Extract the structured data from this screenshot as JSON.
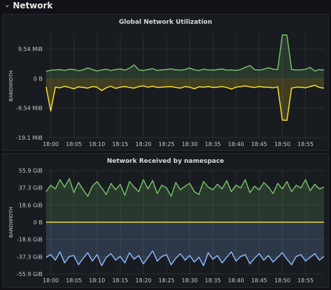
{
  "row": {
    "title": "Network"
  },
  "panels": [
    {
      "title": "Global Network Utilization",
      "ylabel": "BANDWIDTH",
      "yticks": [
        "9.54 MiB",
        "0 B",
        "-9.54 MiB",
        "-19.1 MiB"
      ],
      "xticks": [
        "18:00",
        "18:05",
        "18:10",
        "18:15",
        "18:20",
        "18:25",
        "18:30",
        "18:35",
        "18:40",
        "18:45",
        "18:50",
        "18:55"
      ],
      "colors": {
        "received": "#73bf69",
        "transmitted": "#fade2a"
      }
    },
    {
      "title": "Network Received by namespace",
      "ylabel": "BANDWIDTH",
      "yticks": [
        "55.9 GiB",
        "37.3 GiB",
        "18.6 GiB",
        "0 B",
        "-18.6 GiB",
        "-37.3 GiB",
        "-55.9 GiB"
      ],
      "xticks": [
        "18:00",
        "18:05",
        "18:10",
        "18:15",
        "18:20",
        "18:25",
        "18:30",
        "18:35",
        "18:40",
        "18:45",
        "18:50",
        "18:55"
      ],
      "colors": {
        "received": "#73bf69",
        "zero": "#fade2a",
        "transmitted": "#8ab8ff"
      }
    }
  ],
  "chart_data": [
    {
      "type": "line",
      "title": "Global Network Utilization",
      "ylabel": "BANDWIDTH",
      "ylim": [
        -19.1,
        14.3
      ],
      "x": [
        "17:59",
        "18:00",
        "18:01",
        "18:02",
        "18:03",
        "18:04",
        "18:05",
        "18:06",
        "18:07",
        "18:08",
        "18:09",
        "18:10",
        "18:11",
        "18:12",
        "18:13",
        "18:14",
        "18:15",
        "18:16",
        "18:17",
        "18:18",
        "18:19",
        "18:20",
        "18:21",
        "18:22",
        "18:23",
        "18:24",
        "18:25",
        "18:26",
        "18:27",
        "18:28",
        "18:29",
        "18:30",
        "18:31",
        "18:32",
        "18:33",
        "18:34",
        "18:35",
        "18:36",
        "18:37",
        "18:38",
        "18:39",
        "18:40",
        "18:41",
        "18:42",
        "18:43",
        "18:44",
        "18:45",
        "18:46",
        "18:47",
        "18:48",
        "18:49",
        "18:50",
        "18:51",
        "18:52",
        "18:53",
        "18:54",
        "18:55",
        "18:56",
        "18:57",
        "18:58",
        "18:59"
      ],
      "series": [
        {
          "values": [
            2.3,
            2.7,
            2.8,
            2.9,
            2.6,
            3.0,
            2.9,
            2.5,
            2.8,
            3.4,
            2.9,
            2.4,
            2.8,
            3.0,
            2.6,
            2.9,
            3.1,
            2.7,
            3.3,
            4.4,
            2.8,
            2.6,
            2.9,
            3.2,
            2.6,
            2.8,
            2.9,
            3.1,
            2.8,
            2.7,
            2.9,
            3.4,
            2.8,
            2.6,
            3.0,
            2.8,
            2.7,
            2.9,
            3.1,
            2.7,
            2.8,
            2.6,
            2.9,
            3.6,
            4.2,
            2.9,
            2.7,
            3.0,
            3.5,
            3.0,
            2.9,
            14.1,
            14.0,
            2.9,
            2.8,
            2.8,
            3.0,
            3.6,
            2.4,
            2.9,
            2.7
          ]
        },
        {
          "values": [
            -2.7,
            -10.5,
            -2.8,
            -3.0,
            -2.5,
            -2.9,
            -3.3,
            -2.7,
            -2.9,
            -3.1,
            -2.6,
            -2.8,
            -3.9,
            -3.0,
            -2.5,
            -3.2,
            -2.8,
            -2.6,
            -2.9,
            -3.1,
            -2.6,
            -2.4,
            -2.8,
            -2.5,
            -2.9,
            -2.8,
            -2.7,
            -2.6,
            -2.9,
            -3.1,
            -2.6,
            -2.8,
            -3.3,
            -2.7,
            -2.8,
            -2.6,
            -2.9,
            -2.8,
            -2.6,
            -2.9,
            -3.4,
            -2.8,
            -2.6,
            -2.4,
            -2.7,
            -2.9,
            -2.6,
            -2.8,
            -2.8,
            -3.0,
            -2.7,
            -13.4,
            -13.5,
            -3.1,
            -2.8,
            -2.8,
            -3.0,
            -2.6,
            -2.2,
            -2.9,
            -3.1
          ]
        }
      ]
    },
    {
      "type": "line",
      "title": "Network Received by namespace",
      "ylabel": "BANDWIDTH",
      "ylim": [
        -55.9,
        55.9
      ],
      "x": [
        "17:59",
        "18:00",
        "18:01",
        "18:02",
        "18:03",
        "18:04",
        "18:05",
        "18:06",
        "18:07",
        "18:08",
        "18:09",
        "18:10",
        "18:11",
        "18:12",
        "18:13",
        "18:14",
        "18:15",
        "18:16",
        "18:17",
        "18:18",
        "18:19",
        "18:20",
        "18:21",
        "18:22",
        "18:23",
        "18:24",
        "18:25",
        "18:26",
        "18:27",
        "18:28",
        "18:29",
        "18:30",
        "18:31",
        "18:32",
        "18:33",
        "18:34",
        "18:35",
        "18:36",
        "18:37",
        "18:38",
        "18:39",
        "18:40",
        "18:41",
        "18:42",
        "18:43",
        "18:44",
        "18:45",
        "18:46",
        "18:47",
        "18:48",
        "18:49",
        "18:50",
        "18:51",
        "18:52",
        "18:53",
        "18:54",
        "18:55",
        "18:56",
        "18:57",
        "18:58",
        "18:59"
      ],
      "series": [
        {
          "values": [
            33,
            40,
            36,
            46,
            38,
            47,
            32,
            43,
            35,
            28,
            39,
            44,
            37,
            30,
            42,
            35,
            41,
            29,
            44,
            38,
            33,
            46,
            36,
            45,
            31,
            40,
            37,
            28,
            43,
            35,
            39,
            42,
            33,
            30,
            44,
            38,
            35,
            41,
            36,
            45,
            33,
            40,
            37,
            46,
            32,
            39,
            35,
            43,
            38,
            31,
            42,
            36,
            44,
            33,
            40,
            37,
            46,
            34,
            41,
            36,
            38
          ]
        },
        {
          "values": [
            0,
            0,
            0,
            0,
            0,
            0,
            0,
            0,
            0,
            0,
            0,
            0,
            0,
            0,
            0,
            0,
            0,
            0,
            0,
            0,
            0,
            0,
            0,
            0,
            0,
            0,
            0,
            0,
            0,
            0,
            0,
            0,
            0,
            0,
            0,
            0,
            0,
            0,
            0,
            0,
            0,
            0,
            0,
            0,
            0,
            0,
            0,
            0,
            0,
            0,
            0,
            0,
            0,
            0,
            0,
            0,
            0,
            0,
            0,
            0,
            0
          ]
        },
        {
          "values": [
            -38,
            -35,
            -41,
            -32,
            -44,
            -37,
            -36,
            -46,
            -39,
            -33,
            -42,
            -35,
            -47,
            -38,
            -34,
            -41,
            -37,
            -44,
            -33,
            -40,
            -36,
            -45,
            -38,
            -31,
            -42,
            -37,
            -35,
            -46,
            -39,
            -34,
            -41,
            -36,
            -43,
            -38,
            -47,
            -33,
            -40,
            -36,
            -44,
            -38,
            -32,
            -42,
            -37,
            -35,
            -45,
            -39,
            -34,
            -41,
            -36,
            -43,
            -38,
            -33,
            -40,
            -46,
            -37,
            -35,
            -42,
            -38,
            -34,
            -41,
            -37
          ]
        }
      ]
    }
  ]
}
